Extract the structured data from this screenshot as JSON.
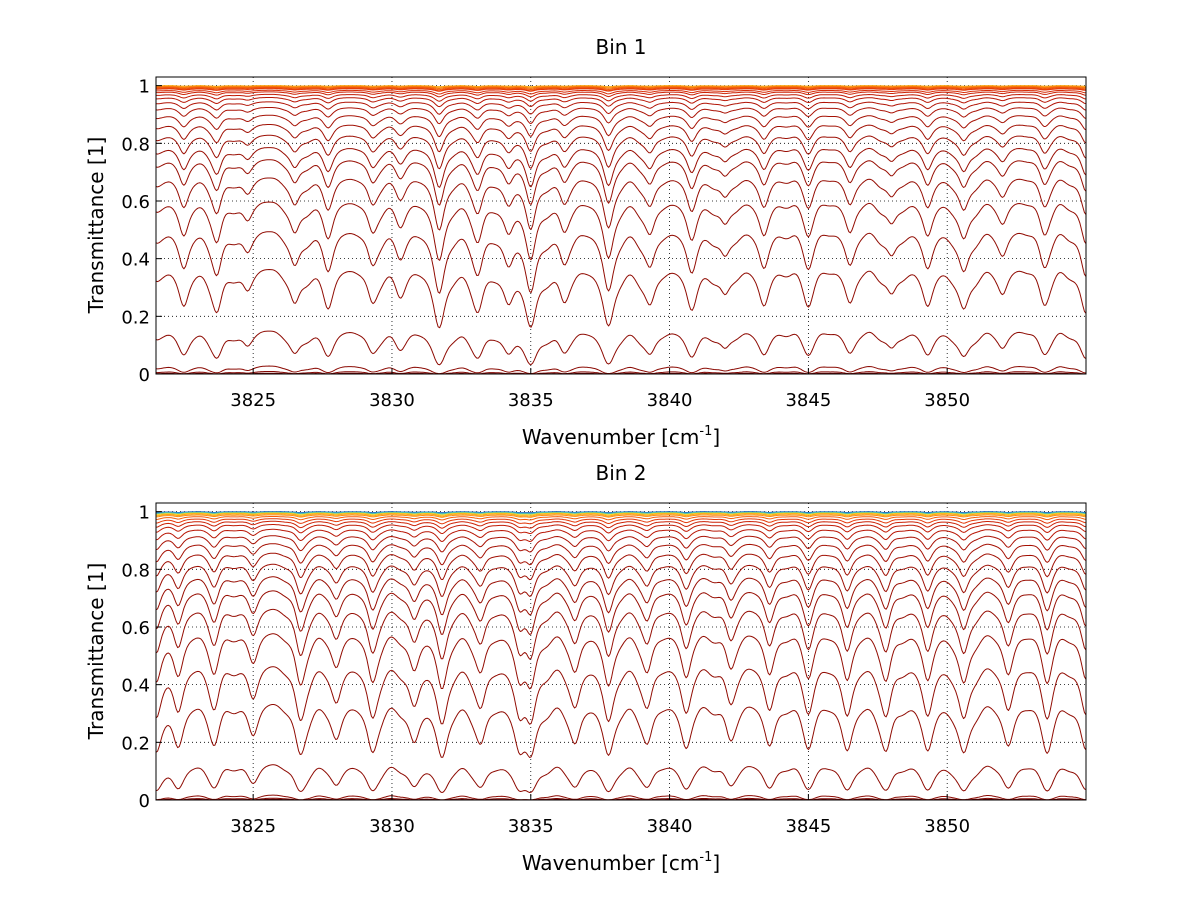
{
  "chart_data": [
    {
      "type": "line",
      "title": "Bin 1",
      "xlabel_main": "Wavenumber [cm",
      "xlabel_sup": "-1",
      "xlabel_end": "]",
      "ylabel": "Transmittance [1]",
      "xlim": [
        3821.5,
        3855
      ],
      "ylim": [
        0,
        1.03
      ],
      "xticks": [
        3825,
        3830,
        3835,
        3840,
        3845,
        3850
      ],
      "yticks": [
        0,
        0.2,
        0.4,
        0.6,
        0.8,
        1
      ],
      "ytick_labels": [
        "0",
        "0.2",
        "0.4",
        "0.6",
        "0.8",
        "1"
      ],
      "grid": true,
      "legend": "none",
      "x": [
        3821.5,
        3822.5,
        3823.7,
        3824.8,
        3826.5,
        3827.7,
        3829.3,
        3830.3,
        3831.7,
        3833.1,
        3834.2,
        3835.0,
        3836.2,
        3837.8,
        3839.3,
        3840.8,
        3842.0,
        3843.4,
        3845.0,
        3846.5,
        3848.0,
        3849.3,
        3850.6,
        3852.0,
        3853.5,
        3855.0
      ],
      "line_absorption": [
        0.15,
        0.55,
        0.6,
        0.3,
        0.5,
        0.55,
        0.45,
        0.3,
        1.0,
        0.55,
        0.45,
        0.95,
        0.4,
        0.95,
        0.5,
        0.6,
        0.35,
        0.55,
        0.45,
        0.5,
        0.35,
        0.55,
        0.6,
        0.35,
        0.45,
        0.7
      ],
      "series_baselines": [
        1.0,
        1.0,
        0.998,
        0.997,
        0.995,
        0.993,
        0.99,
        0.985,
        0.98,
        0.972,
        0.962,
        0.948,
        0.93,
        0.905,
        0.875,
        0.84,
        0.8,
        0.76,
        0.7,
        0.62,
        0.52,
        0.39,
        0.17,
        0.035,
        0.012,
        0.004
      ],
      "series_colors": [
        "#fdbb1b",
        "#fca413",
        "#fb8c10",
        "#f6750d",
        "#f35d0c",
        "#ec4a0a",
        "#e33808",
        "#d72c07",
        "#cc2206",
        "#c11b06",
        "#b81605",
        "#b11305",
        "#aa1205",
        "#a51104",
        "#a01004",
        "#9c0f04",
        "#990e03",
        "#970e03",
        "#950d03",
        "#930d03",
        "#910c03",
        "#900c03",
        "#8e0b03",
        "#8b0a03",
        "#820703",
        "#7a0404"
      ]
    },
    {
      "type": "line",
      "title": "Bin 2",
      "xlabel_main": "Wavenumber [cm",
      "xlabel_sup": "-1",
      "xlabel_end": "]",
      "ylabel": "Transmittance [1]",
      "xlim": [
        3821.5,
        3855
      ],
      "ylim": [
        0,
        1.03
      ],
      "xticks": [
        3825,
        3830,
        3835,
        3840,
        3845,
        3850
      ],
      "yticks": [
        0,
        0.2,
        0.4,
        0.6,
        0.8,
        1
      ],
      "ytick_labels": [
        "0",
        "0.2",
        "0.4",
        "0.6",
        "0.8",
        "1"
      ],
      "grid": true,
      "legend": "none",
      "x": [
        3821.5,
        3822.3,
        3823.6,
        3825.0,
        3826.7,
        3828.0,
        3829.3,
        3830.8,
        3831.8,
        3833.2,
        3834.6,
        3835.0,
        3836.6,
        3837.8,
        3839.2,
        3840.6,
        3842.2,
        3843.6,
        3845.0,
        3846.4,
        3847.8,
        3849.3,
        3850.6,
        3852.2,
        3853.6,
        3855.0
      ],
      "line_absorption": [
        0.8,
        0.7,
        0.6,
        0.5,
        0.85,
        0.55,
        0.8,
        0.6,
        0.95,
        0.6,
        0.7,
        0.8,
        0.6,
        0.9,
        0.6,
        0.75,
        0.55,
        0.7,
        0.65,
        0.8,
        0.75,
        0.8,
        0.85,
        0.7,
        0.75,
        0.8
      ],
      "series_baselines": [
        1.0,
        1.0,
        0.999,
        0.998,
        0.996,
        0.994,
        0.99,
        0.985,
        0.978,
        0.97,
        0.96,
        0.945,
        0.925,
        0.9,
        0.87,
        0.835,
        0.795,
        0.75,
        0.69,
        0.61,
        0.5,
        0.37,
        0.15,
        0.025,
        0.01,
        0.004
      ],
      "series_colors": [
        "#0a2a8c",
        "#1f63c4",
        "#2fa5d8",
        "#5fc8a0",
        "#fdd21e",
        "#fca413",
        "#fb8c10",
        "#f35d0c",
        "#e33808",
        "#cc2206",
        "#c11b06",
        "#b81605",
        "#aa1205",
        "#a51104",
        "#a01004",
        "#9c0f04",
        "#990e03",
        "#970e03",
        "#950d03",
        "#930d03",
        "#910c03",
        "#900c03",
        "#8e0b03",
        "#8b0a03",
        "#820703",
        "#7a0404"
      ]
    }
  ]
}
